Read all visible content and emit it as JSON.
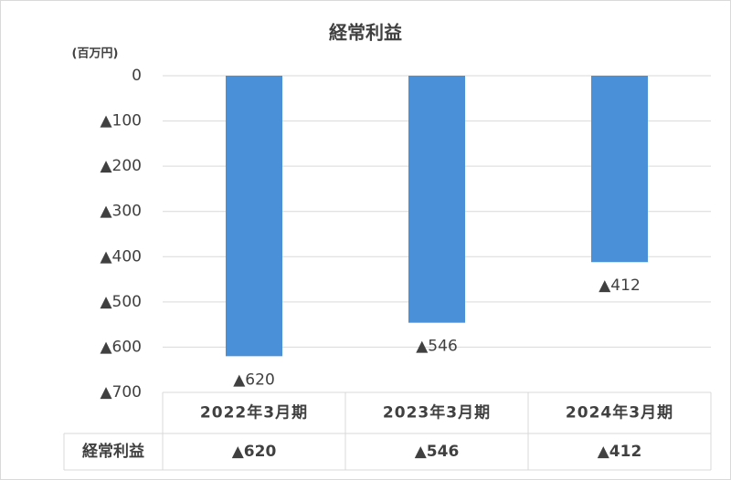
{
  "chart_data": {
    "type": "bar",
    "title": "経常利益",
    "y_unit": "(百万円)",
    "categories": [
      "2022年3月期",
      "2023年3月期",
      "2024年3月期"
    ],
    "series": [
      {
        "name": "経常利益",
        "color": "#4a90d9",
        "values": [
          -620,
          -546,
          -412
        ],
        "value_labels": [
          "▲620",
          "▲546",
          "▲412"
        ]
      }
    ],
    "ylim": [
      -700,
      0
    ],
    "yticks": [
      0,
      {
        "value": -100,
        "label": "▲100"
      },
      {
        "value": -200,
        "label": "▲200"
      },
      {
        "value": -300,
        "label": "▲300"
      },
      {
        "value": -400,
        "label": "▲400"
      },
      {
        "value": -500,
        "label": "▲500"
      },
      {
        "value": -600,
        "label": "▲600"
      },
      {
        "value": -700,
        "label": "▲700"
      }
    ],
    "grid": true
  }
}
